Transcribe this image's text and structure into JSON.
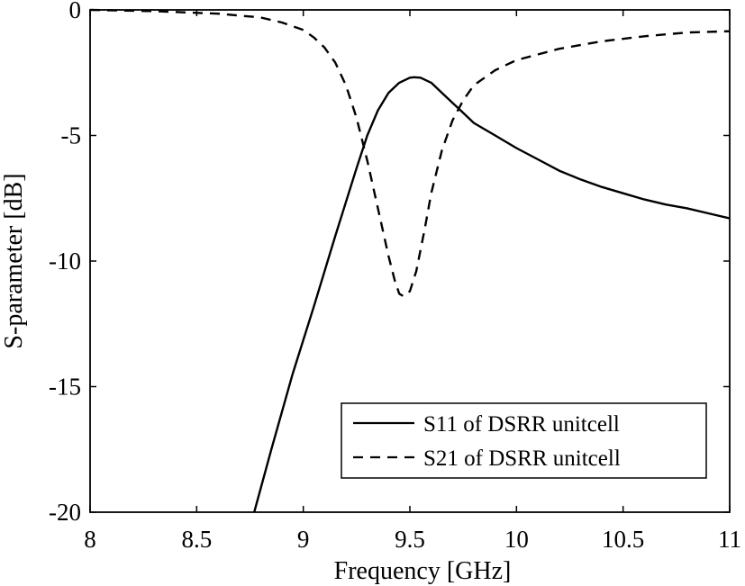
{
  "chart_data": {
    "type": "line",
    "title": "",
    "xlabel": "Frequency [GHz]",
    "ylabel": "S-parameter [dB]",
    "xlim": [
      8,
      11
    ],
    "ylim": [
      -20,
      0
    ],
    "xticks": [
      8,
      8.5,
      9,
      9.5,
      10,
      10.5,
      11
    ],
    "xtick_labels": [
      "8",
      "8.5",
      "9",
      "9.5",
      "10",
      "10.5",
      "11"
    ],
    "yticks": [
      0,
      -5,
      -10,
      -15,
      -20
    ],
    "ytick_labels": [
      "0",
      "-5",
      "-10",
      "-15",
      "-20"
    ],
    "grid": false,
    "legend_position": "bottom-right",
    "series": [
      {
        "name": "S11 of DSRR unitcell",
        "style": "solid",
        "x": [
          8.77,
          8.85,
          8.95,
          9.05,
          9.15,
          9.25,
          9.3,
          9.35,
          9.4,
          9.45,
          9.5,
          9.52,
          9.55,
          9.6,
          9.65,
          9.7,
          9.75,
          9.8,
          9.9,
          10.0,
          10.1,
          10.2,
          10.3,
          10.4,
          10.5,
          10.6,
          10.7,
          10.8,
          10.9,
          11.0
        ],
        "y": [
          -20.0,
          -17.5,
          -14.5,
          -11.8,
          -9.0,
          -6.3,
          -5.0,
          -4.0,
          -3.3,
          -2.9,
          -2.7,
          -2.68,
          -2.7,
          -2.9,
          -3.3,
          -3.7,
          -4.1,
          -4.5,
          -5.0,
          -5.5,
          -5.95,
          -6.4,
          -6.75,
          -7.05,
          -7.3,
          -7.55,
          -7.75,
          -7.9,
          -8.1,
          -8.3
        ]
      },
      {
        "name": "S21 of DSRR unitcell",
        "style": "dashed",
        "x": [
          8.0,
          8.3,
          8.6,
          8.8,
          8.9,
          9.0,
          9.05,
          9.1,
          9.15,
          9.2,
          9.25,
          9.3,
          9.35,
          9.4,
          9.43,
          9.45,
          9.47,
          9.5,
          9.53,
          9.57,
          9.6,
          9.65,
          9.7,
          9.75,
          9.8,
          9.9,
          10.0,
          10.2,
          10.4,
          10.6,
          10.8,
          11.0
        ],
        "y": [
          0.0,
          -0.05,
          -0.15,
          -0.3,
          -0.5,
          -0.8,
          -1.1,
          -1.5,
          -2.1,
          -3.0,
          -4.3,
          -6.0,
          -7.9,
          -9.8,
          -10.8,
          -11.3,
          -11.4,
          -11.2,
          -10.4,
          -8.7,
          -7.3,
          -5.6,
          -4.4,
          -3.6,
          -3.0,
          -2.4,
          -2.0,
          -1.55,
          -1.25,
          -1.05,
          -0.9,
          -0.85
        ]
      }
    ]
  }
}
